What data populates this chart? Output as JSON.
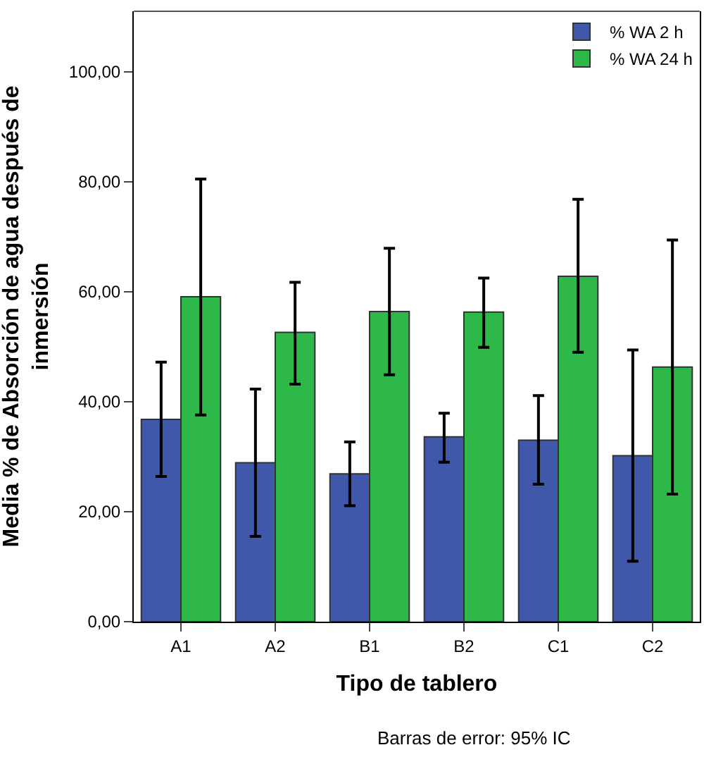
{
  "chart_data": {
    "type": "bar",
    "xlabel": "Tipo de tablero",
    "ylabel": "Media % de Absorción de agua después de inmersión",
    "categories": [
      "A1",
      "A2",
      "B1",
      "B2",
      "C1",
      "C2"
    ],
    "series": [
      {
        "name": "% WA 2 h",
        "color": "#3f58a9",
        "values": [
          36.8,
          28.9,
          26.9,
          33.6,
          33.0,
          30.2
        ],
        "errors": [
          [
            26.4,
            47.2
          ],
          [
            15.5,
            42.3
          ],
          [
            21.1,
            32.7
          ],
          [
            29.0,
            37.9
          ],
          [
            25.0,
            41.1
          ],
          [
            11.0,
            49.4
          ]
        ]
      },
      {
        "name": "% WA 24 h",
        "color": "#2fb84a",
        "values": [
          59.1,
          52.6,
          56.4,
          56.3,
          62.8,
          46.3
        ],
        "errors": [
          [
            37.6,
            80.5
          ],
          [
            43.2,
            61.7
          ],
          [
            44.9,
            67.9
          ],
          [
            49.9,
            62.5
          ],
          [
            49.0,
            76.8
          ],
          [
            23.2,
            69.4
          ]
        ]
      }
    ],
    "ylim": [
      0,
      111
    ],
    "yticks": [
      {
        "value": 0,
        "label": "0,00"
      },
      {
        "value": 20,
        "label": "20,00"
      },
      {
        "value": 40,
        "label": "40,00"
      },
      {
        "value": 60,
        "label": "60,00"
      },
      {
        "value": 80,
        "label": "80,00"
      },
      {
        "value": 100,
        "label": "100,00"
      }
    ],
    "legend": "top right",
    "annotations": [
      "Barras de error: 95% IC"
    ]
  }
}
